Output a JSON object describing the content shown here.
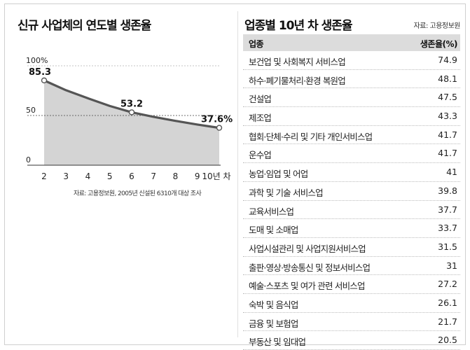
{
  "left_panel": {
    "title": "신규 사업체의 연도별 생존율",
    "source": "자료: 고용정보원, 2005년 신설된 6310개 대상 조사"
  },
  "right_panel": {
    "title": "업종별 10년 차 생존율",
    "source": "자료: 고용정보원",
    "headers": {
      "industry": "업종",
      "rate": "생존율(%)"
    },
    "rows": [
      {
        "industry": "보건업 및 사회복지 서비스업",
        "rate": "74.9"
      },
      {
        "industry": "하수·폐기물처리·환경 복원업",
        "rate": "48.1"
      },
      {
        "industry": "건설업",
        "rate": "47.5"
      },
      {
        "industry": "제조업",
        "rate": "43.3"
      },
      {
        "industry": "협회·단체·수리 및 기타 개인서비스업",
        "rate": "41.7"
      },
      {
        "industry": "운수업",
        "rate": "41.7"
      },
      {
        "industry": "농업·임업 및 어업",
        "rate": "41"
      },
      {
        "industry": "과학 및 기술 서비스업",
        "rate": "39.8"
      },
      {
        "industry": "교육서비스업",
        "rate": "37.7"
      },
      {
        "industry": "도매 및 소매업",
        "rate": "33.7"
      },
      {
        "industry": "사업시설관리 및 사업지원서비스업",
        "rate": "31.5"
      },
      {
        "industry": "출판·영상·방송통신 및 정보서비스업",
        "rate": "31"
      },
      {
        "industry": "예술·스포츠 및 여가 관련 서비스업",
        "rate": "27.2"
      },
      {
        "industry": "숙박 및 음식업",
        "rate": "26.1"
      },
      {
        "industry": "금융 및 보험업",
        "rate": "21.7"
      },
      {
        "industry": "부동산 및 임대업",
        "rate": "20.5"
      }
    ]
  },
  "chart_data": [
    {
      "type": "area",
      "title": "신규 사업체의 연도별 생존율",
      "categories": [
        "2",
        "3",
        "4",
        "5",
        "6",
        "7",
        "8",
        "9",
        "10년 차"
      ],
      "x": [
        2,
        3,
        4,
        5,
        6,
        7,
        8,
        9,
        10
      ],
      "curve_values": [
        85.3,
        75.4,
        67.3,
        59.6,
        53.2,
        48.6,
        44.6,
        40.9,
        37.6
      ],
      "labeled_points": [
        {
          "x": 2,
          "y": 85.3,
          "label": "85.3"
        },
        {
          "x": 6,
          "y": 53.2,
          "label": "53.2"
        },
        {
          "x": 10,
          "y": 37.6,
          "label": "37.6%"
        }
      ],
      "y_ticks": [
        "0",
        "50",
        "100%"
      ],
      "ylim": [
        0,
        100
      ],
      "colors": {
        "line": "#555555",
        "fill": "#d4d4d4"
      }
    },
    {
      "type": "table",
      "title": "업종별 10년 차 생존율",
      "columns": [
        "업종",
        "생존율(%)"
      ],
      "rows": [
        [
          "보건업 및 사회복지 서비스업",
          74.9
        ],
        [
          "하수·폐기물처리·환경 복원업",
          48.1
        ],
        [
          "건설업",
          47.5
        ],
        [
          "제조업",
          43.3
        ],
        [
          "협회·단체·수리 및 기타 개인서비스업",
          41.7
        ],
        [
          "운수업",
          41.7
        ],
        [
          "농업·임업 및 어업",
          41
        ],
        [
          "과학 및 기술 서비스업",
          39.8
        ],
        [
          "교육서비스업",
          37.7
        ],
        [
          "도매 및 소매업",
          33.7
        ],
        [
          "사업시설관리 및 사업지원서비스업",
          31.5
        ],
        [
          "출판·영상·방송통신 및 정보서비스업",
          31
        ],
        [
          "예술·스포츠 및 여가 관련 서비스업",
          27.2
        ],
        [
          "숙박 및 음식업",
          26.1
        ],
        [
          "금융 및 보험업",
          21.7
        ],
        [
          "부동산 및 임대업",
          20.5
        ]
      ]
    }
  ]
}
